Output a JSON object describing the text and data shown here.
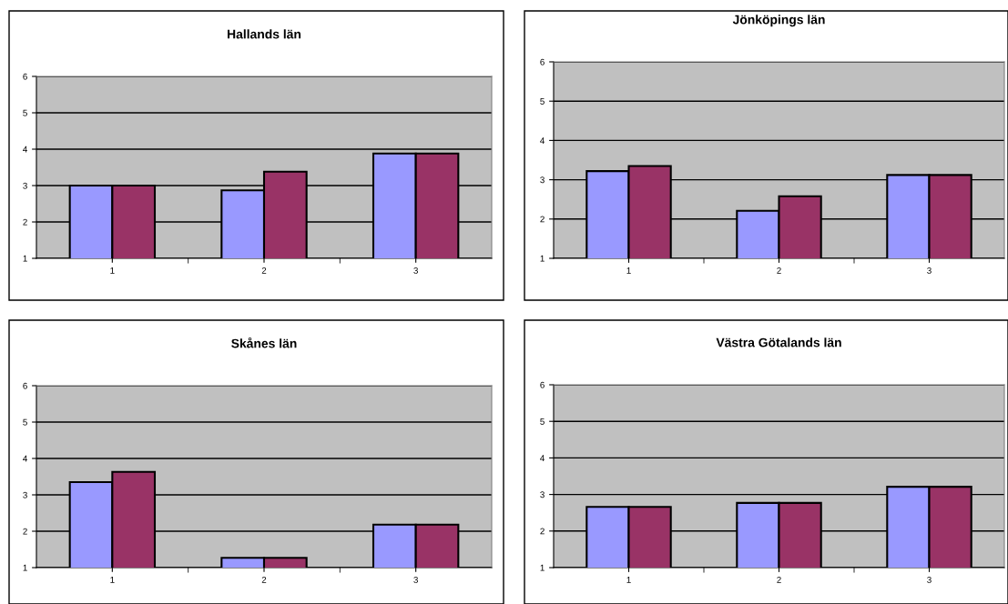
{
  "chart_data": [
    {
      "type": "bar",
      "title": "Hallands län",
      "categories": [
        "1",
        "2",
        "3"
      ],
      "series": [
        {
          "color": "#9999ff",
          "values": [
            3.0,
            2.87,
            3.88
          ]
        },
        {
          "color": "#993366",
          "values": [
            3.0,
            3.38,
            3.88
          ]
        }
      ],
      "ylim": [
        1,
        6
      ],
      "yticks": [
        1,
        2,
        3,
        4,
        5,
        6
      ],
      "grid": "y"
    },
    {
      "type": "bar",
      "title": "Jönköpings län",
      "categories": [
        "1",
        "2",
        "3"
      ],
      "series": [
        {
          "color": "#9999ff",
          "values": [
            3.22,
            2.21,
            3.12
          ]
        },
        {
          "color": "#993366",
          "values": [
            3.35,
            2.58,
            3.12
          ]
        }
      ],
      "ylim": [
        1,
        6
      ],
      "yticks": [
        1,
        2,
        3,
        4,
        5,
        6
      ],
      "grid": "y"
    },
    {
      "type": "bar",
      "title": "Skånes län",
      "categories": [
        "1",
        "2",
        "3"
      ],
      "series": [
        {
          "color": "#9999ff",
          "values": [
            3.35,
            1.27,
            2.18
          ]
        },
        {
          "color": "#993366",
          "values": [
            3.63,
            1.27,
            2.18
          ]
        }
      ],
      "ylim": [
        1,
        6
      ],
      "yticks": [
        1,
        2,
        3,
        4,
        5,
        6
      ],
      "grid": "y"
    },
    {
      "type": "bar",
      "title": "Västra Götalands län",
      "categories": [
        "1",
        "2",
        "3"
      ],
      "series": [
        {
          "color": "#9999ff",
          "values": [
            2.66,
            2.77,
            3.21
          ]
        },
        {
          "color": "#993366",
          "values": [
            2.66,
            2.77,
            3.21
          ]
        }
      ],
      "ylim": [
        1,
        6
      ],
      "yticks": [
        1,
        2,
        3,
        4,
        5,
        6
      ],
      "grid": "y"
    }
  ]
}
